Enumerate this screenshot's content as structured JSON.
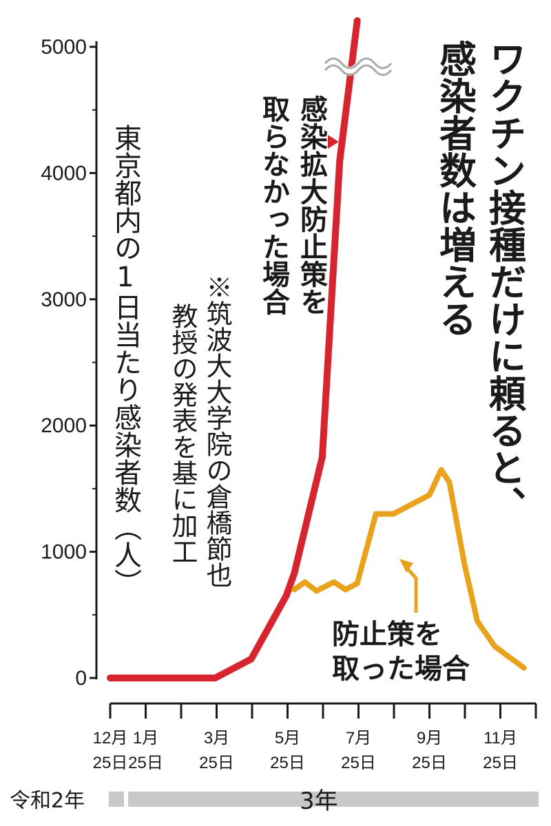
{
  "title": "ワクチン接種だけに頼ると、感染者数は増える",
  "title_lines": [
    "ワクチン接種だけに頼ると、",
    "感染者数は増える"
  ],
  "ylabel": "東京都内の1日当たり感染者数（人）",
  "source_note": "※筑波大大学院の倉橋節也教授の発表を基に加工",
  "source_note_lines": [
    "※筑波大大学院の倉橋節也",
    "教授の発表を基に加工"
  ],
  "colors": {
    "red_series": "#d6252f",
    "orange_series": "#e8a21c",
    "axis": "#1a1a1a",
    "era_bar": "#c8c8c8"
  },
  "chart_data": {
    "type": "line",
    "ylim": [
      0,
      5000
    ],
    "yticks": [
      "0",
      "1000",
      "2000",
      "3000",
      "4000",
      "5000"
    ],
    "xticks": [
      {
        "month": "12月",
        "day": "25日"
      },
      {
        "month": "1月",
        "day": "25日"
      },
      {
        "month": "3月",
        "day": "25日"
      },
      {
        "month": "5月",
        "day": "25日"
      },
      {
        "month": "7月",
        "day": "25日"
      },
      {
        "month": "9月",
        "day": "25日"
      },
      {
        "month": "11月",
        "day": "25日"
      }
    ],
    "axis_break_at": 5000,
    "series": [
      {
        "name": "感染拡大防止策を取らなかった場合",
        "color": "#d6252f",
        "points": [
          {
            "x": "2020-12-25",
            "y": 0
          },
          {
            "x": "2021-03-25",
            "y": 0
          },
          {
            "x": "2021-04-25",
            "y": 150
          },
          {
            "x": "2021-05-25",
            "y": 650
          },
          {
            "x": "2021-06-01",
            "y": 830
          },
          {
            "x": "2021-06-25",
            "y": 1750
          },
          {
            "x": "2021-07-10",
            "y": 4100
          },
          {
            "x": "2021-07-25",
            "y": 5200
          }
        ],
        "annotation_lines": [
          "感染拡大防止策を",
          "取らなかった場合"
        ]
      },
      {
        "name": "防止策を取った場合",
        "color": "#e8a21c",
        "points": [
          {
            "x": "2021-06-01",
            "y": 700
          },
          {
            "x": "2021-06-10",
            "y": 760
          },
          {
            "x": "2021-06-20",
            "y": 690
          },
          {
            "x": "2021-07-05",
            "y": 760
          },
          {
            "x": "2021-07-15",
            "y": 700
          },
          {
            "x": "2021-07-25",
            "y": 750
          },
          {
            "x": "2021-08-10",
            "y": 1300
          },
          {
            "x": "2021-08-25",
            "y": 1300
          },
          {
            "x": "2021-09-25",
            "y": 1450
          },
          {
            "x": "2021-10-05",
            "y": 1650
          },
          {
            "x": "2021-10-12",
            "y": 1550
          },
          {
            "x": "2021-10-25",
            "y": 900
          },
          {
            "x": "2021-11-05",
            "y": 450
          },
          {
            "x": "2021-11-20",
            "y": 250
          },
          {
            "x": "2021-12-15",
            "y": 80
          }
        ],
        "annotation_lines": [
          "防止策を",
          "取った場合"
        ]
      }
    ],
    "eras": [
      {
        "label": "令和2年"
      },
      {
        "label": "3年"
      }
    ]
  }
}
